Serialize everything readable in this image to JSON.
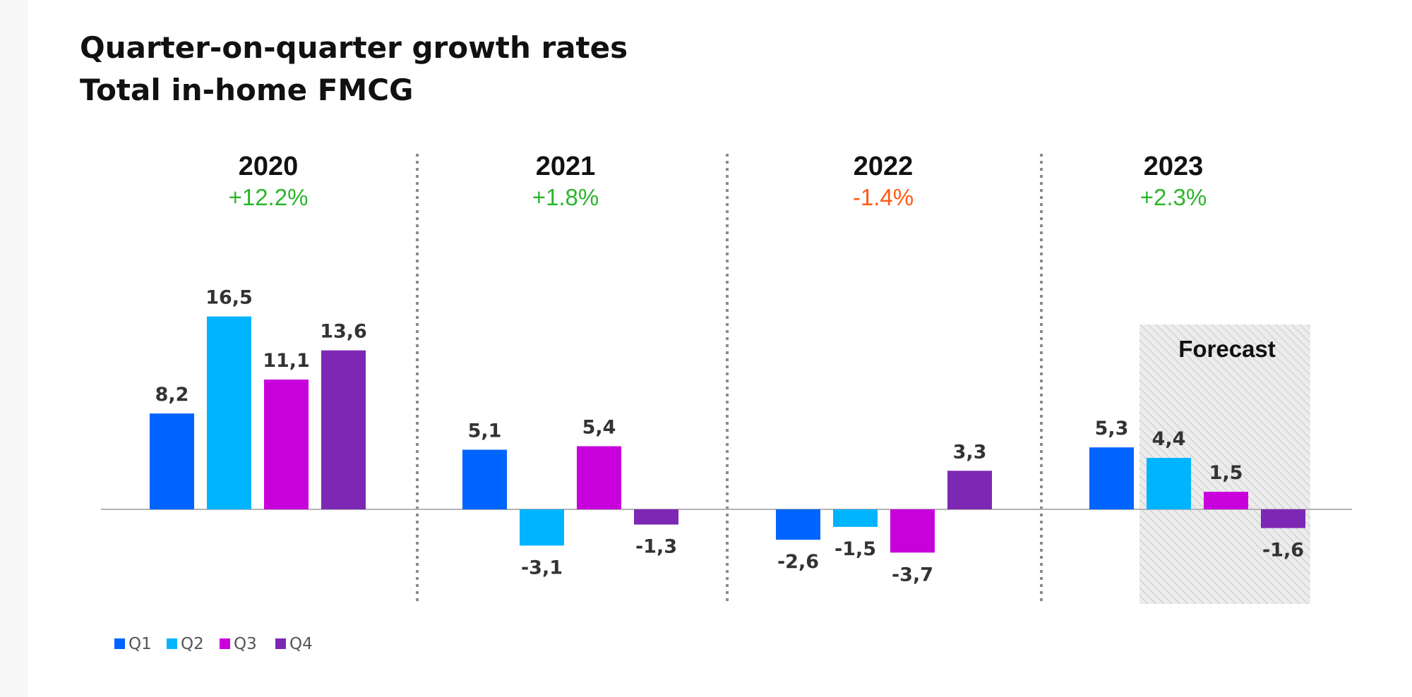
{
  "chart_data": {
    "type": "bar",
    "title": "Quarter-on-quarter growth rates",
    "subtitle": "Total in-home FMCG",
    "categories": [
      "2020",
      "2021",
      "2022",
      "2023"
    ],
    "period_growth": [
      "+12.2%",
      "+1.8%",
      "-1.4%",
      "+2.3%"
    ],
    "period_growth_colors": [
      "#2bb52b",
      "#2bb52b",
      "#ff5a14",
      "#2bb52b"
    ],
    "series": [
      {
        "name": "Q1",
        "color": "#0064ff",
        "values": [
          8.2,
          5.1,
          -2.6,
          5.3
        ],
        "labels": [
          "8,2",
          "5,1",
          "-2,6",
          "5,3"
        ]
      },
      {
        "name": "Q2",
        "color": "#00b4ff",
        "values": [
          16.5,
          -3.1,
          -1.5,
          4.4
        ],
        "labels": [
          "16,5",
          "-3,1",
          "-1,5",
          "4,4"
        ]
      },
      {
        "name": "Q3",
        "color": "#c800dc",
        "values": [
          11.1,
          5.4,
          -3.7,
          1.5
        ],
        "labels": [
          "11,1",
          "5,4",
          "-3,7",
          "1,5"
        ]
      },
      {
        "name": "Q4",
        "color": "#7d28b4",
        "values": [
          13.6,
          -1.3,
          3.3,
          -1.6
        ],
        "labels": [
          "13,6",
          "-1,3",
          "3,3",
          "-1,6"
        ]
      }
    ],
    "forecast": {
      "label": "Forecast",
      "category": "2023",
      "from_series": "Q2"
    },
    "legend_position": "bottom-left",
    "grid": false
  }
}
